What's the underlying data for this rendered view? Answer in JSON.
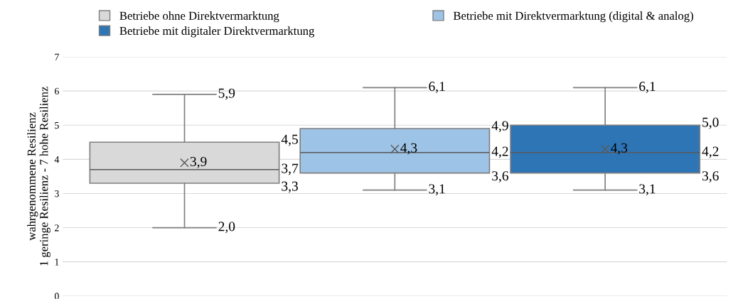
{
  "chart_data": {
    "type": "box",
    "ylabel": "wahrgenommene Resilienz\n1 geringe Resilienz - 7 hohe Resilienz",
    "categories": [
      null
    ],
    "series": [
      {
        "name": "Betriebe ohne Direktvermarktung",
        "color": "#d9d9d9",
        "boxes": [
          {
            "low": 2.0,
            "q1": 3.3,
            "median": 3.7,
            "q3": 4.5,
            "high": 5.9,
            "mean": 3.9
          }
        ],
        "value_labels": [
          [
            "2,0",
            "3,3",
            "3,7",
            "4,5",
            "5,9",
            "3,9"
          ]
        ]
      },
      {
        "name": "Betriebe mit Direktvermarktung (digital & analog)",
        "color": "#9dc3e6",
        "boxes": [
          {
            "low": 3.1,
            "q1": 3.6,
            "median": 4.2,
            "q3": 4.9,
            "high": 6.1,
            "mean": 4.3
          }
        ],
        "value_labels": [
          [
            "3,1",
            "3,6",
            "4,2",
            "4,9",
            "6,1",
            "4,3"
          ]
        ]
      },
      {
        "name": "Betriebe mit digitaler Direktvermarktung",
        "color": "#2e75b6",
        "boxes": [
          {
            "low": 3.1,
            "q1": 3.6,
            "median": 4.2,
            "q3": 5.0,
            "high": 6.1,
            "mean": 4.3
          }
        ],
        "value_labels": [
          [
            "3,1",
            "3,6",
            "4,2",
            "5,0",
            "6,1",
            "4,3"
          ]
        ]
      }
    ],
    "ylim": [
      0,
      7
    ],
    "yticks": [
      0,
      1,
      2,
      3,
      4,
      5,
      6,
      7
    ],
    "grid": "y",
    "legend": "top left"
  }
}
